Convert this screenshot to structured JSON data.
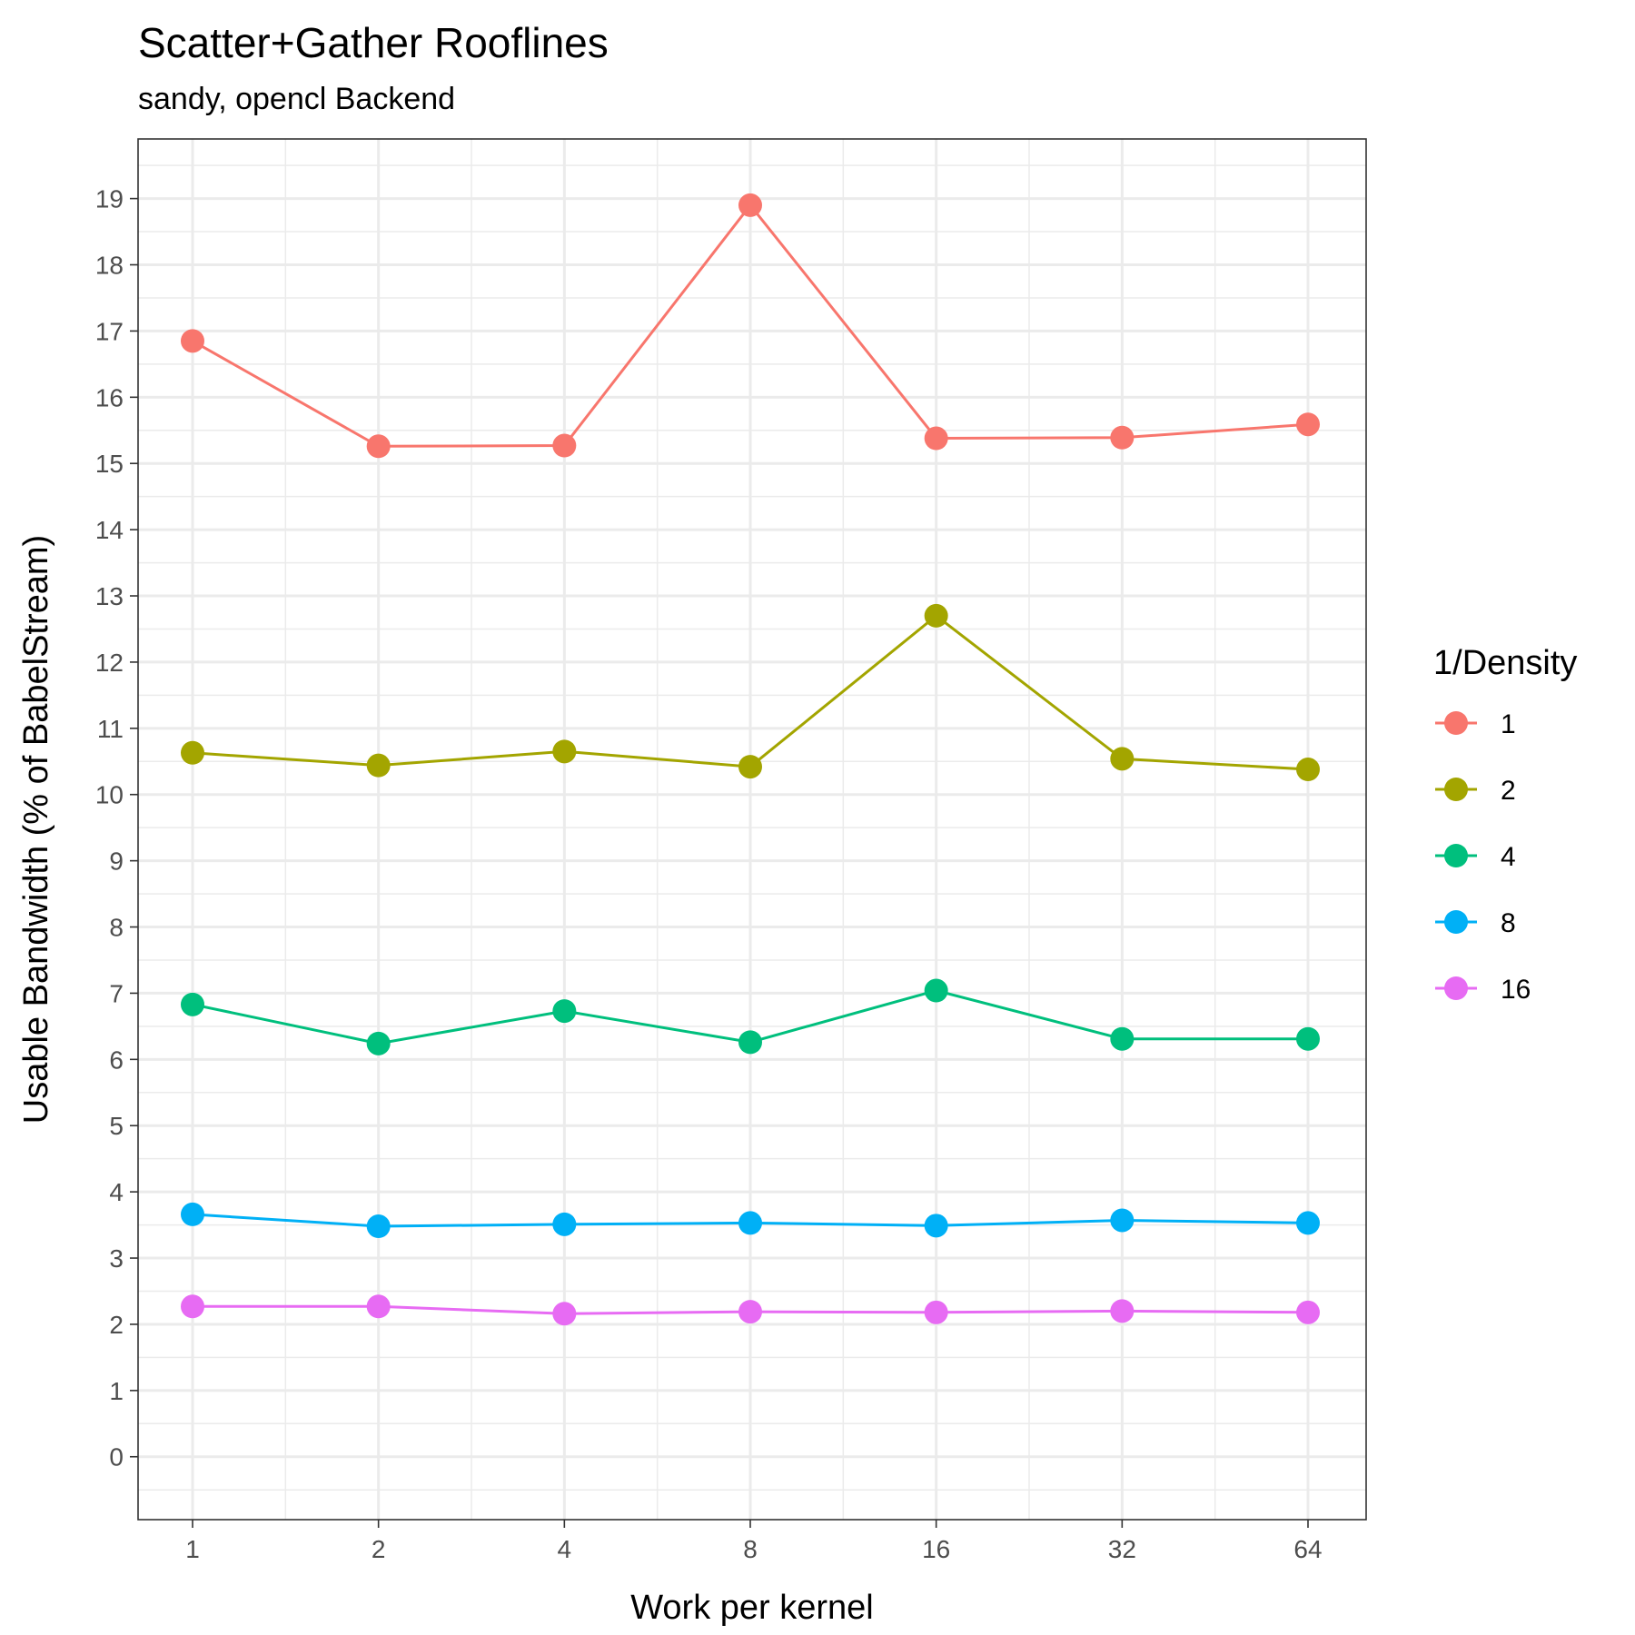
{
  "chart_data": {
    "type": "line",
    "title": "Scatter+Gather Rooflines",
    "subtitle": "sandy, opencl Backend",
    "xlabel": "Work per kernel",
    "ylabel": "Usable Bandwidth (% of BabelStream)",
    "x_scale": "log2",
    "x": [
      1,
      2,
      4,
      8,
      16,
      32,
      64
    ],
    "x_tick_labels": [
      "1",
      "2",
      "4",
      "8",
      "16",
      "32",
      "64"
    ],
    "y_ticks": [
      0,
      1,
      2,
      3,
      4,
      5,
      6,
      7,
      8,
      9,
      10,
      11,
      12,
      13,
      14,
      15,
      16,
      17,
      18,
      19
    ],
    "ylim": [
      -0.95,
      19.9
    ],
    "grid": true,
    "legend_title": "1/Density",
    "legend_position": "right",
    "series": [
      {
        "name": "1",
        "color": "#F8766D",
        "values": [
          16.85,
          15.26,
          15.27,
          18.9,
          15.38,
          15.39,
          15.59
        ]
      },
      {
        "name": "2",
        "color": "#A3A500",
        "values": [
          10.63,
          10.44,
          10.65,
          10.42,
          12.7,
          10.54,
          10.38
        ]
      },
      {
        "name": "4",
        "color": "#00BF7D",
        "values": [
          6.83,
          6.24,
          6.73,
          6.26,
          7.04,
          6.31,
          6.31
        ]
      },
      {
        "name": "8",
        "color": "#00B0F6",
        "values": [
          3.66,
          3.48,
          3.51,
          3.53,
          3.49,
          3.57,
          3.53
        ]
      },
      {
        "name": "16",
        "color": "#E76BF3",
        "values": [
          2.27,
          2.27,
          2.16,
          2.19,
          2.18,
          2.2,
          2.18
        ]
      }
    ]
  }
}
